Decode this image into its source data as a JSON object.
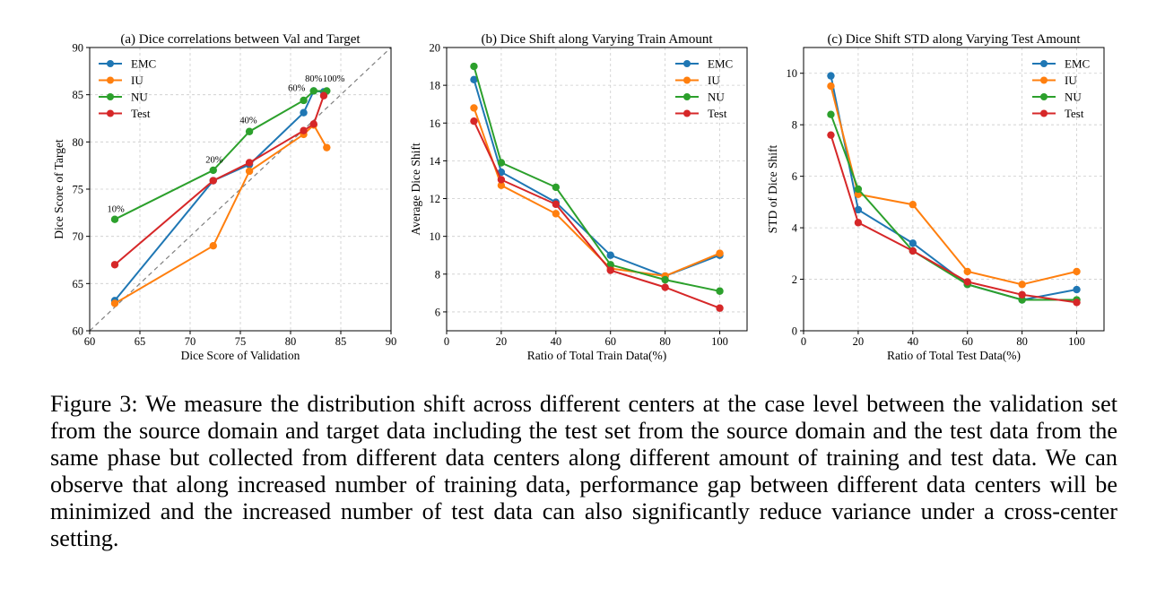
{
  "caption": {
    "label": "Figure 3:",
    "text": "We measure the distribution shift across different centers at the case level between the validation set from the source domain and target data including the test set from the source domain and the test data from the same phase but collected from different data centers along different amount of training and test data. We can observe that along increased number of training data, performance gap between different data centers will be minimized and the increased number of test data can also significantly reduce variance under a cross-center setting."
  },
  "colors": {
    "EMC": "#1f77b4",
    "IU": "#ff7f0e",
    "NU": "#2ca02c",
    "Test": "#d62728"
  },
  "chart_data": [
    {
      "type": "line",
      "title": "(a) Dice correlations between Val and Target",
      "xlabel": "Dice Score of Validation",
      "ylabel": "Dice Score of Target",
      "xlim": [
        60,
        90
      ],
      "ylim": [
        60,
        90
      ],
      "xticks": [
        60,
        65,
        70,
        75,
        80,
        85,
        90
      ],
      "yticks": [
        60,
        65,
        70,
        75,
        80,
        85,
        90
      ],
      "grid": true,
      "legend": "top-left",
      "diagonal_reference": true,
      "series": [
        {
          "name": "EMC",
          "x": [
            62.5,
            72.3,
            75.9,
            81.3,
            82.3,
            83.3
          ],
          "y": [
            63.2,
            75.9,
            77.6,
            83.1,
            85.4,
            85.3
          ]
        },
        {
          "name": "IU",
          "x": [
            62.5,
            72.3,
            75.9,
            81.3,
            82.3,
            83.6
          ],
          "y": [
            62.9,
            69.0,
            76.9,
            80.8,
            81.8,
            79.4
          ]
        },
        {
          "name": "NU",
          "x": [
            62.5,
            72.3,
            75.9,
            81.3,
            82.3,
            83.6
          ],
          "y": [
            71.8,
            77.0,
            81.1,
            84.4,
            85.4,
            85.4
          ]
        },
        {
          "name": "Test",
          "x": [
            62.5,
            72.3,
            75.9,
            81.3,
            82.3,
            83.3
          ],
          "y": [
            67.0,
            75.9,
            77.8,
            81.2,
            81.9,
            84.9
          ]
        }
      ],
      "annotations": [
        {
          "text": "10%",
          "x": 62.6,
          "y": 72.6
        },
        {
          "text": "20%",
          "x": 72.4,
          "y": 77.8
        },
        {
          "text": "40%",
          "x": 75.8,
          "y": 82.0
        },
        {
          "text": "60%",
          "x": 80.6,
          "y": 85.4
        },
        {
          "text": "80%",
          "x": 82.3,
          "y": 86.4
        },
        {
          "text": "100%",
          "x": 84.3,
          "y": 86.4
        }
      ]
    },
    {
      "type": "line",
      "title": "(b) Dice Shift along Varying Train Amount",
      "xlabel": "Ratio of Total Train Data(%)",
      "ylabel": "Average Dice Shift",
      "xlim": [
        0,
        110
      ],
      "ylim": [
        5,
        20
      ],
      "xticks": [
        0,
        20,
        40,
        60,
        80,
        100
      ],
      "yticks": [
        6,
        8,
        10,
        12,
        14,
        16,
        18,
        20
      ],
      "grid": true,
      "legend": "top-right",
      "x": [
        10,
        20,
        40,
        60,
        80,
        100
      ],
      "series": [
        {
          "name": "EMC",
          "values": [
            18.3,
            13.4,
            11.8,
            9.0,
            7.9,
            9.0
          ]
        },
        {
          "name": "IU",
          "values": [
            16.8,
            12.7,
            11.2,
            8.3,
            7.9,
            9.1
          ]
        },
        {
          "name": "NU",
          "values": [
            19.0,
            13.9,
            12.6,
            8.5,
            7.7,
            7.1
          ]
        },
        {
          "name": "Test",
          "values": [
            16.1,
            13.0,
            11.7,
            8.2,
            7.3,
            6.2
          ]
        }
      ]
    },
    {
      "type": "line",
      "title": "(c) Dice Shift STD along Varying Test Amount",
      "xlabel": "Ratio of Total Test Data(%)",
      "ylabel": "STD of Dice Shift",
      "xlim": [
        0,
        110
      ],
      "ylim": [
        0,
        11
      ],
      "xticks": [
        0,
        20,
        40,
        60,
        80,
        100
      ],
      "yticks": [
        0,
        2,
        4,
        6,
        8,
        10
      ],
      "grid": true,
      "legend": "top-right",
      "x": [
        10,
        20,
        40,
        60,
        80,
        100
      ],
      "series": [
        {
          "name": "EMC",
          "values": [
            9.9,
            4.7,
            3.4,
            1.8,
            1.2,
            1.6
          ]
        },
        {
          "name": "IU",
          "values": [
            9.5,
            5.3,
            4.9,
            2.3,
            1.8,
            2.3
          ]
        },
        {
          "name": "NU",
          "values": [
            8.4,
            5.5,
            3.1,
            1.8,
            1.2,
            1.2
          ]
        },
        {
          "name": "Test",
          "values": [
            7.6,
            4.2,
            3.1,
            1.9,
            1.4,
            1.1
          ]
        }
      ]
    }
  ]
}
